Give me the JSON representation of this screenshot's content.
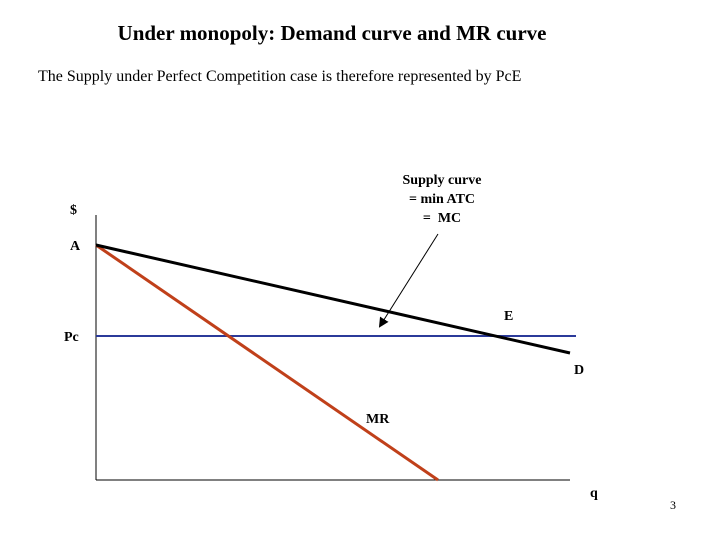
{
  "header": {
    "title": "Under monopoly: Demand curve and MR curve",
    "subtitle": "The Supply under Perfect Competition case is therefore represented by PcE"
  },
  "diagram": {
    "y_axis_label": "$",
    "x_axis_label": "q",
    "point_a": "A",
    "price_label": "Pc",
    "point_e": "E",
    "demand_label": "D",
    "mr_label": "MR",
    "note": [
      "Supply curve",
      "= min ATC",
      "=  MC"
    ]
  },
  "footer": {
    "page_number": "3"
  }
}
